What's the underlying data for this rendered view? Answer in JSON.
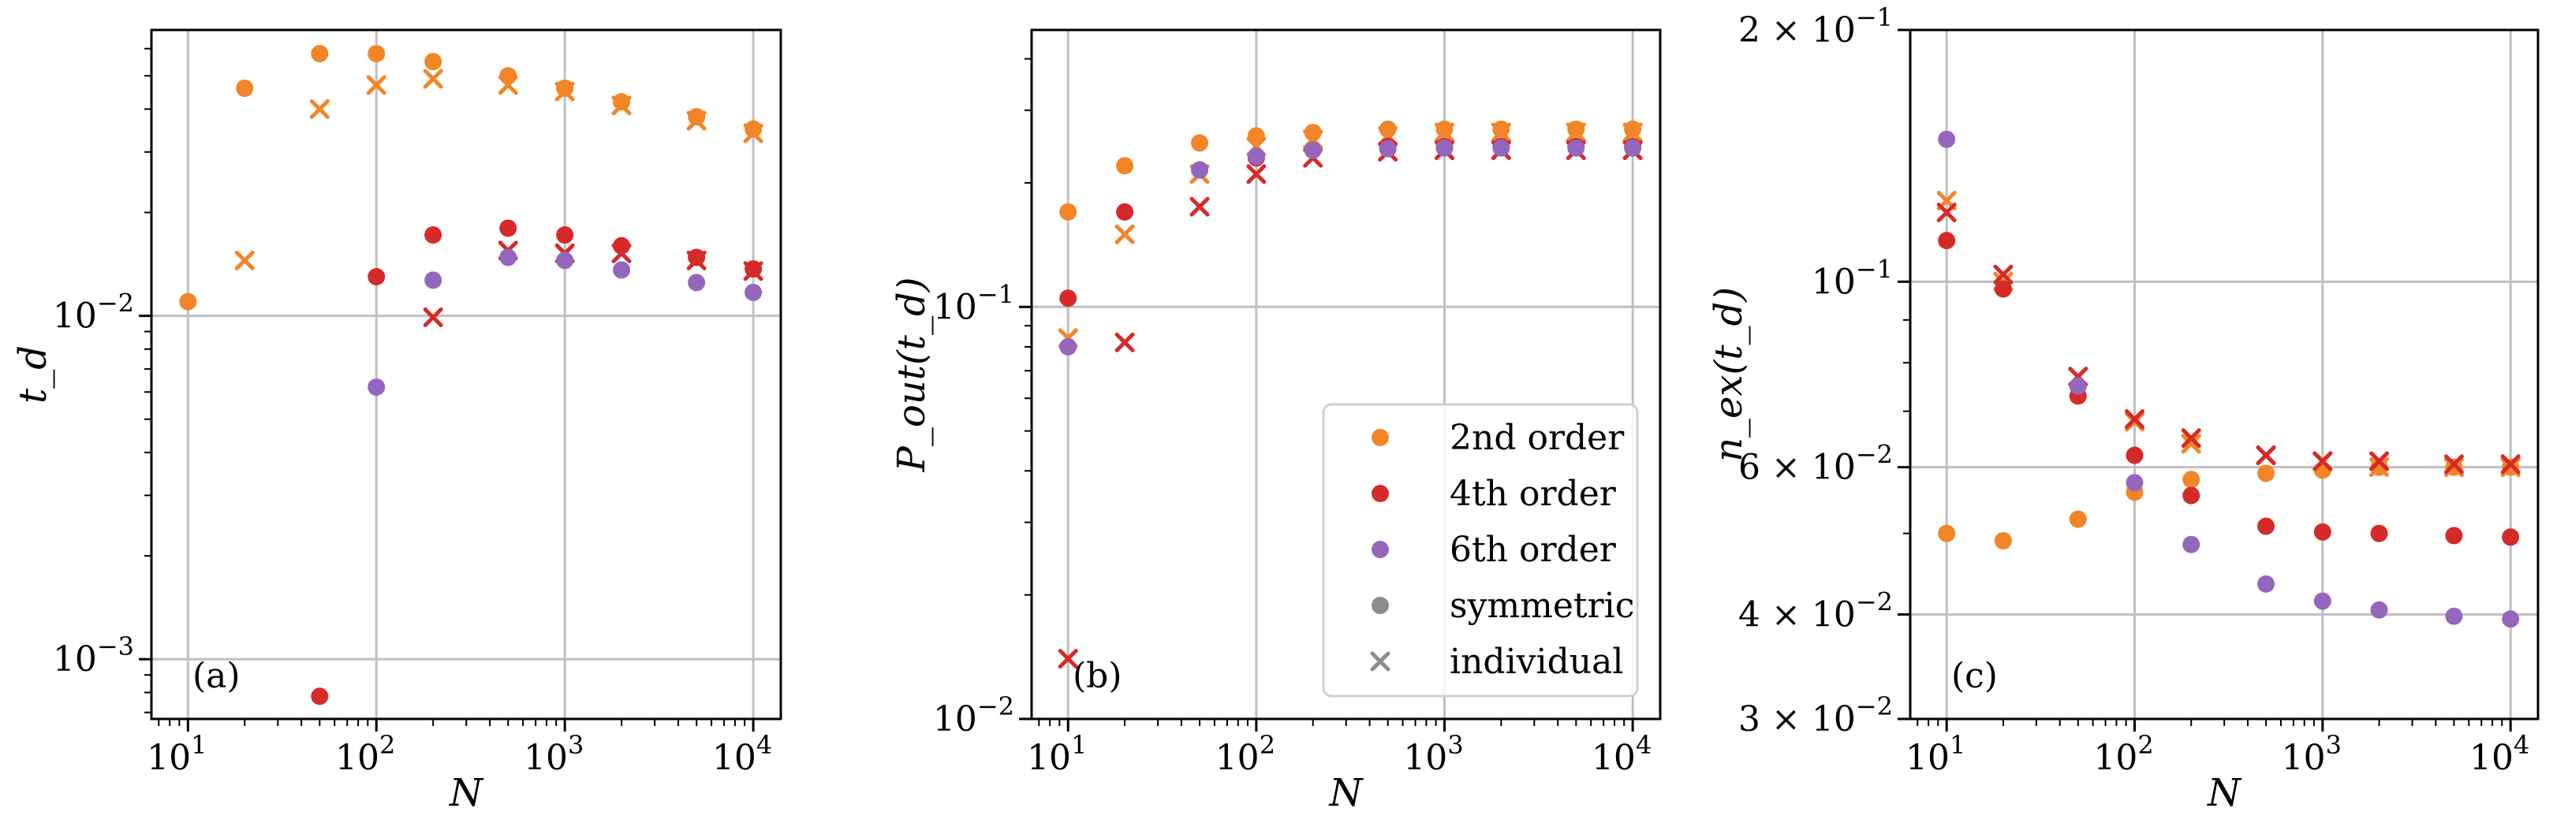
{
  "figure": {
    "colors": {
      "2nd order": "#F28527",
      "4th order": "#D62A2A",
      "6th order": "#9467BD",
      "gray": "#8C8C8C"
    },
    "legend": {
      "panel": 1,
      "items": [
        {
          "label": "2nd order",
          "marker": "circle",
          "color": "#F28527"
        },
        {
          "label": "4th order",
          "marker": "circle",
          "color": "#D62A2A"
        },
        {
          "label": "6th order",
          "marker": "circle",
          "color": "#9467BD"
        },
        {
          "label": "symmetric",
          "marker": "circle",
          "color": "#8C8C8C"
        },
        {
          "label": "individual",
          "marker": "x",
          "color": "#8C8C8C"
        }
      ]
    }
  },
  "chart_data": [
    {
      "type": "scatter",
      "panel_label": "(a)",
      "xlabel": "N",
      "ylabel": "t_d",
      "xscale": "log",
      "yscale": "log",
      "xlim": [
        6.4,
        14000
      ],
      "ylim": [
        0.00067,
        0.068
      ],
      "xticks": [
        {
          "value": 10,
          "base": "10",
          "exp": "1"
        },
        {
          "value": 100,
          "base": "10",
          "exp": "2"
        },
        {
          "value": 1000,
          "base": "10",
          "exp": "3"
        },
        {
          "value": 10000,
          "base": "10",
          "exp": "4"
        }
      ],
      "yticks": [
        {
          "value": 0.001,
          "base": "10",
          "exp": "−3"
        },
        {
          "value": 0.01,
          "base": "10",
          "exp": "−2"
        }
      ],
      "series": [
        {
          "name": "2nd order symmetric",
          "color": "#F28527",
          "marker": "circle",
          "x": [
            10,
            20,
            50,
            100,
            200,
            500,
            1000,
            2000,
            5000,
            10000
          ],
          "y": [
            0.011,
            0.046,
            0.058,
            0.058,
            0.055,
            0.05,
            0.046,
            0.042,
            0.038,
            0.035
          ]
        },
        {
          "name": "2nd order individual",
          "color": "#F28527",
          "marker": "x",
          "x": [
            20,
            50,
            100,
            200,
            500,
            1000,
            2000,
            5000,
            10000
          ],
          "y": [
            0.0145,
            0.04,
            0.047,
            0.049,
            0.047,
            0.045,
            0.041,
            0.037,
            0.034
          ]
        },
        {
          "name": "4th order symmetric",
          "color": "#D62A2A",
          "marker": "circle",
          "x": [
            50,
            100,
            200,
            500,
            1000,
            2000,
            5000,
            10000
          ],
          "y": [
            0.00078,
            0.013,
            0.0172,
            0.018,
            0.0172,
            0.016,
            0.0148,
            0.0137
          ]
        },
        {
          "name": "4th order individual",
          "color": "#D62A2A",
          "marker": "x",
          "x": [
            200,
            500,
            1000,
            2000,
            5000,
            10000
          ],
          "y": [
            0.0099,
            0.0155,
            0.0152,
            0.0152,
            0.0145,
            0.0135
          ]
        },
        {
          "name": "6th order symmetric",
          "color": "#9467BD",
          "marker": "circle",
          "x": [
            100,
            200,
            500,
            1000,
            2000,
            5000,
            10000
          ],
          "y": [
            0.0062,
            0.0127,
            0.0148,
            0.0145,
            0.0136,
            0.0125,
            0.0117
          ]
        }
      ]
    },
    {
      "type": "scatter",
      "panel_label": "(b)",
      "xlabel": "N",
      "ylabel": "P_out(t_d)",
      "xscale": "log",
      "yscale": "log",
      "xlim": [
        6.4,
        14000
      ],
      "ylim": [
        0.01,
        0.47
      ],
      "xticks": [
        {
          "value": 10,
          "base": "10",
          "exp": "1"
        },
        {
          "value": 100,
          "base": "10",
          "exp": "2"
        },
        {
          "value": 1000,
          "base": "10",
          "exp": "3"
        },
        {
          "value": 10000,
          "base": "10",
          "exp": "4"
        }
      ],
      "yticks": [
        {
          "value": 0.01,
          "base": "10",
          "exp": "−2"
        },
        {
          "value": 0.1,
          "base": "10",
          "exp": "−1"
        }
      ],
      "series": [
        {
          "name": "2nd order symmetric",
          "color": "#F28527",
          "marker": "circle",
          "x": [
            10,
            20,
            50,
            100,
            200,
            500,
            1000,
            2000,
            5000,
            10000
          ],
          "y": [
            0.17,
            0.22,
            0.25,
            0.26,
            0.265,
            0.27,
            0.27,
            0.27,
            0.27,
            0.27
          ]
        },
        {
          "name": "2nd order individual",
          "color": "#F28527",
          "marker": "x",
          "x": [
            10,
            20,
            50,
            100,
            200,
            500,
            1000,
            2000,
            5000,
            10000
          ],
          "y": [
            0.084,
            0.15,
            0.21,
            0.245,
            0.255,
            0.26,
            0.265,
            0.265,
            0.265,
            0.265
          ]
        },
        {
          "name": "4th order symmetric",
          "color": "#D62A2A",
          "marker": "circle",
          "x": [
            10,
            20,
            50,
            100,
            200,
            500,
            1000,
            2000,
            5000,
            10000
          ],
          "y": [
            0.105,
            0.17,
            0.215,
            0.23,
            0.24,
            0.245,
            0.245,
            0.245,
            0.245,
            0.245
          ]
        },
        {
          "name": "4th order individual",
          "color": "#D62A2A",
          "marker": "x",
          "x": [
            10,
            20,
            50,
            100,
            200,
            500,
            1000,
            2000,
            5000,
            10000
          ],
          "y": [
            0.014,
            0.082,
            0.175,
            0.21,
            0.23,
            0.238,
            0.24,
            0.24,
            0.24,
            0.24
          ]
        },
        {
          "name": "6th order symmetric",
          "color": "#9467BD",
          "marker": "circle",
          "x": [
            10,
            50,
            100,
            200,
            500,
            1000,
            2000,
            5000,
            10000
          ],
          "y": [
            0.08,
            0.215,
            0.232,
            0.24,
            0.242,
            0.243,
            0.243,
            0.243,
            0.243
          ]
        }
      ]
    },
    {
      "type": "scatter",
      "panel_label": "(c)",
      "xlabel": "N",
      "ylabel": "n_ex(t_d)",
      "xscale": "log",
      "yscale": "log",
      "xlim": [
        6.4,
        14000
      ],
      "ylim": [
        0.03,
        0.2
      ],
      "xticks": [
        {
          "value": 10,
          "base": "10",
          "exp": "1"
        },
        {
          "value": 100,
          "base": "10",
          "exp": "2"
        },
        {
          "value": 1000,
          "base": "10",
          "exp": "3"
        },
        {
          "value": 10000,
          "base": "10",
          "exp": "4"
        }
      ],
      "yticks": [
        {
          "value": 0.03,
          "mant": "3 × ",
          "base": "10",
          "exp": "−2"
        },
        {
          "value": 0.04,
          "mant": "4 × ",
          "base": "10",
          "exp": "−2"
        },
        {
          "value": 0.06,
          "mant": "6 × ",
          "base": "10",
          "exp": "−2"
        },
        {
          "value": 0.1,
          "mant": "",
          "base": "10",
          "exp": "−1"
        },
        {
          "value": 0.2,
          "mant": "2 × ",
          "base": "10",
          "exp": "−1"
        }
      ],
      "series": [
        {
          "name": "2nd order symmetric",
          "color": "#F28527",
          "marker": "circle",
          "x": [
            10,
            20,
            50,
            100,
            200,
            500,
            1000,
            2000,
            5000,
            10000
          ],
          "y": [
            0.05,
            0.049,
            0.052,
            0.056,
            0.058,
            0.059,
            0.0595,
            0.06,
            0.06,
            0.06
          ]
        },
        {
          "name": "2nd order individual",
          "color": "#F28527",
          "marker": "x",
          "x": [
            10,
            20,
            50,
            100,
            200,
            500,
            1000,
            2000,
            5000,
            10000
          ],
          "y": [
            0.125,
            0.1,
            0.077,
            0.068,
            0.064,
            0.062,
            0.061,
            0.06,
            0.06,
            0.06
          ]
        },
        {
          "name": "4th order symmetric",
          "color": "#D62A2A",
          "marker": "circle",
          "x": [
            10,
            20,
            50,
            100,
            200,
            500,
            1000,
            2000,
            5000,
            10000
          ],
          "y": [
            0.112,
            0.098,
            0.073,
            0.062,
            0.0555,
            0.051,
            0.0502,
            0.05,
            0.0497,
            0.0495
          ]
        },
        {
          "name": "4th order individual",
          "color": "#D62A2A",
          "marker": "x",
          "x": [
            10,
            20,
            50,
            100,
            200,
            500,
            1000,
            2000,
            5000,
            10000
          ],
          "y": [
            0.121,
            0.102,
            0.077,
            0.0685,
            0.065,
            0.062,
            0.061,
            0.061,
            0.0605,
            0.0605
          ]
        },
        {
          "name": "6th order symmetric",
          "color": "#9467BD",
          "marker": "circle",
          "x": [
            10,
            50,
            100,
            200,
            500,
            1000,
            2000,
            5000,
            10000
          ],
          "y": [
            0.148,
            0.075,
            0.0575,
            0.0485,
            0.0435,
            0.0415,
            0.0405,
            0.0398,
            0.0395
          ]
        }
      ]
    }
  ]
}
